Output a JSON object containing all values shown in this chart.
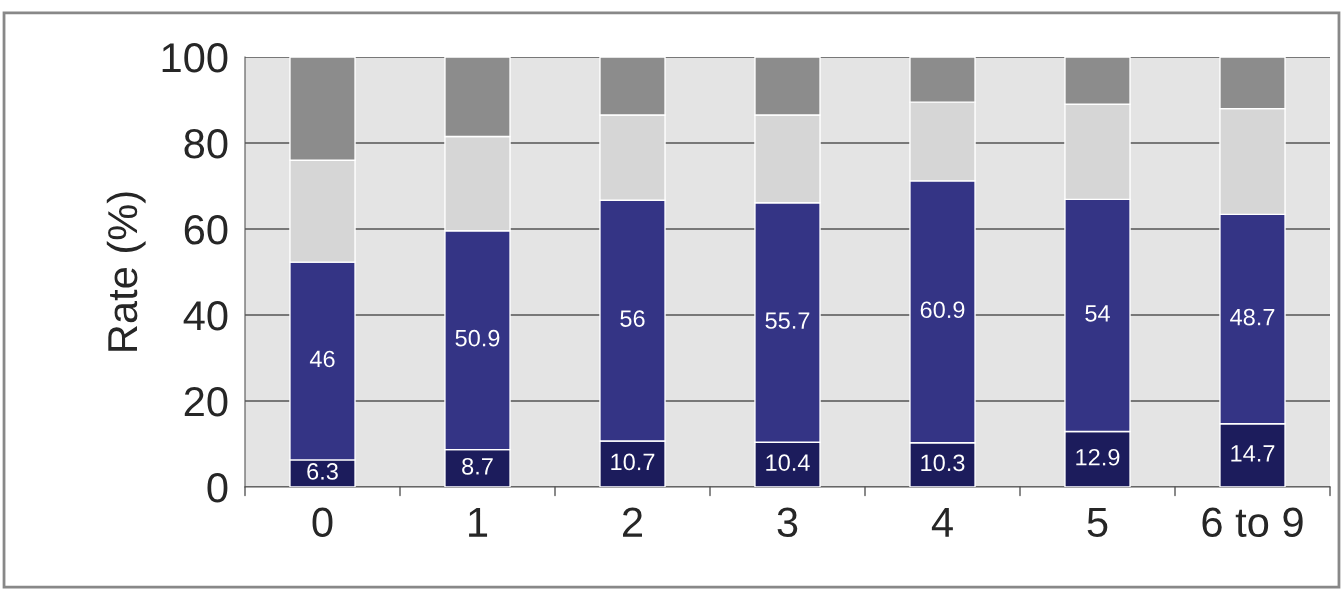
{
  "chart_data": {
    "type": "bar",
    "stacked": true,
    "ylabel": "Rate (%)",
    "categories": [
      "0",
      "1",
      "2",
      "3",
      "4",
      "5",
      "6 to 9"
    ],
    "series": [
      {
        "color": "#1c1c5c",
        "values": [
          6.3,
          8.7,
          10.7,
          10.4,
          10.3,
          12.9,
          14.7
        ],
        "value_labels": [
          "6.3",
          "8.7",
          "10.7",
          "10.4",
          "10.3",
          "12.9",
          "14.7"
        ]
      },
      {
        "color": "#343485",
        "values": [
          46,
          50.9,
          56,
          55.7,
          60.9,
          54,
          48.7
        ],
        "value_labels": [
          "46",
          "50.9",
          "56",
          "55.7",
          "60.9",
          "54",
          "48.7"
        ]
      },
      {
        "color": "#d6d6d6",
        "values": [
          23.7,
          21.9,
          19.8,
          20.4,
          18.3,
          22.1,
          24.6
        ]
      },
      {
        "color": "#8c8c8c",
        "values": [
          24,
          18.5,
          13.5,
          13.5,
          10.5,
          11,
          12
        ]
      }
    ],
    "ylim": [
      0,
      100
    ],
    "yticks": [
      0,
      20,
      40,
      60,
      80,
      100
    ],
    "grid": "y"
  }
}
